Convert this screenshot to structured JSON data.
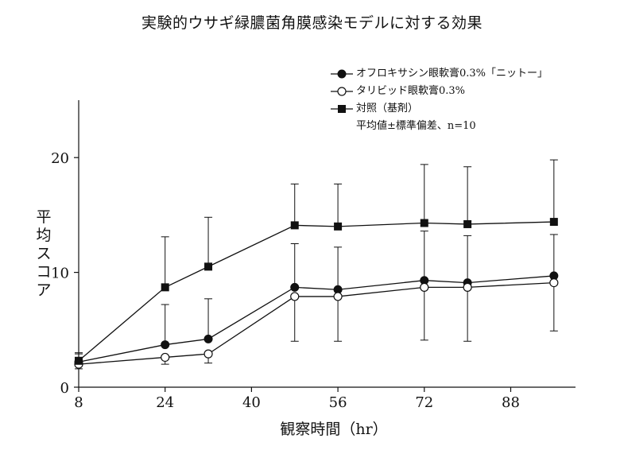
{
  "chart_data": {
    "type": "line",
    "title": "実験的ウサギ緑膿菌角膜感染モデルに対する効果",
    "xlabel": "観察時間（hr）",
    "ylabel": "平均スコア",
    "xlim": [
      8,
      100
    ],
    "ylim": [
      0,
      25
    ],
    "xticks": [
      8,
      24,
      40,
      56,
      72,
      88
    ],
    "yticks": [
      0,
      10,
      20
    ],
    "grid": false,
    "legend_position": "top-right",
    "legend_note": "平均値±標準偏差、n=10",
    "series": [
      {
        "name": "オフロキサシン眼軟膏0.3%「ニットー」",
        "marker": "filled-circle",
        "x": [
          8,
          24,
          32,
          48,
          56,
          72,
          80,
          96
        ],
        "y": [
          2.2,
          3.7,
          4.2,
          8.7,
          8.5,
          9.3,
          9.1,
          9.7
        ],
        "err": [
          0.7,
          3.5,
          3.5,
          3.8,
          3.7,
          4.3,
          4.1,
          3.6
        ]
      },
      {
        "name": "タリビッド眼軟膏0.3%",
        "marker": "open-circle",
        "x": [
          8,
          24,
          32,
          48,
          56,
          72,
          80,
          96
        ],
        "y": [
          2.0,
          2.6,
          2.9,
          7.9,
          7.9,
          8.7,
          8.7,
          9.1
        ],
        "err": [
          0.4,
          0.6,
          0.8,
          3.9,
          3.9,
          4.6,
          4.7,
          4.2
        ]
      },
      {
        "name": "対照（基剤）",
        "marker": "filled-square",
        "x": [
          8,
          24,
          32,
          48,
          56,
          72,
          80,
          96
        ],
        "y": [
          2.3,
          8.7,
          10.5,
          14.1,
          14.0,
          14.3,
          14.2,
          14.4
        ],
        "err": [
          0.7,
          4.4,
          4.3,
          3.6,
          3.7,
          5.1,
          5.0,
          5.4
        ]
      }
    ]
  },
  "ylabel_chars": [
    "平",
    "均",
    "ス",
    "コ",
    "ア"
  ],
  "colors": {
    "ink": "#111111",
    "background": "#ffffff"
  }
}
